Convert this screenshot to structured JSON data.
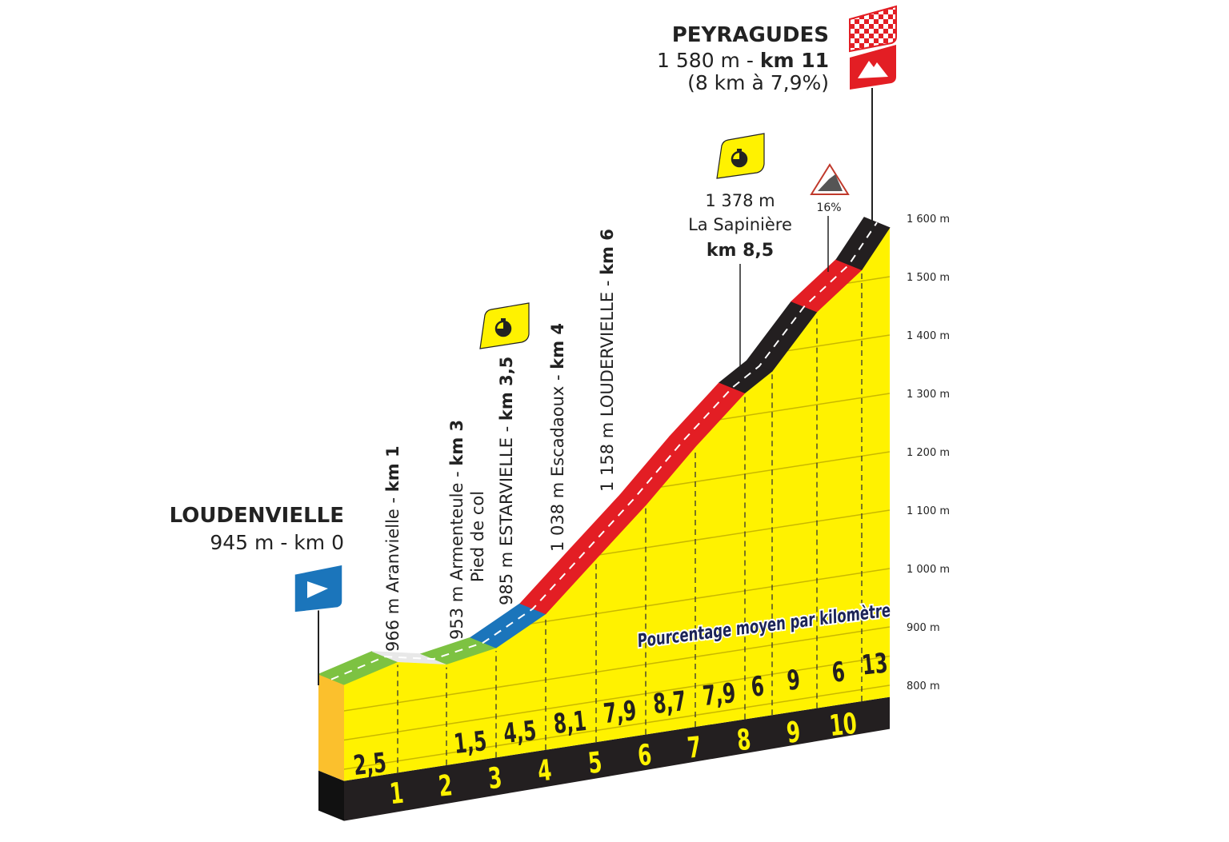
{
  "chart_data": {
    "type": "area",
    "title": "",
    "xlabel": "",
    "ylabel": "",
    "ylim": [
      800,
      1600
    ],
    "grid": true,
    "y_ticks": [
      "800 m",
      "900 m",
      "1 000 m",
      "1 100 m",
      "1 200 m",
      "1 300 m",
      "1 400 m",
      "1 500 m",
      "1 600 m"
    ],
    "y_tick_values": [
      800,
      900,
      1000,
      1100,
      1200,
      1300,
      1400,
      1500,
      1600
    ],
    "x_ticks": [
      "1",
      "2",
      "3",
      "4",
      "5",
      "6",
      "7",
      "8",
      "9",
      "10"
    ],
    "start_elevation_m": 945,
    "segments": [
      {
        "km_from": 0,
        "km_to": 1,
        "gradient": 2.5,
        "label": "2,5",
        "color": "green"
      },
      {
        "km_from": 1,
        "km_to": 2,
        "gradient": -1.7,
        "label": "",
        "color": "white"
      },
      {
        "km_from": 2,
        "km_to": 3,
        "gradient": 1.5,
        "label": "1,5",
        "color": "green"
      },
      {
        "km_from": 3,
        "km_to": 4,
        "gradient": 4.5,
        "label": "4,5",
        "color": "blue"
      },
      {
        "km_from": 4,
        "km_to": 5,
        "gradient": 8.1,
        "label": "8,1",
        "color": "red"
      },
      {
        "km_from": 5,
        "km_to": 6,
        "gradient": 7.9,
        "label": "7,9",
        "color": "red"
      },
      {
        "km_from": 6,
        "km_to": 7,
        "gradient": 8.7,
        "label": "8,7",
        "color": "red"
      },
      {
        "km_from": 7,
        "km_to": 8,
        "gradient": 7.9,
        "label": "7,9",
        "color": "red"
      },
      {
        "km_from": 8,
        "km_to": 8.5,
        "gradient": 6,
        "label": "6",
        "color": "black"
      },
      {
        "km_from": 8.5,
        "km_to": 9.5,
        "gradient": 9,
        "label": "9",
        "color": "black"
      },
      {
        "km_from": 9.5,
        "km_to": 10.5,
        "gradient": 6,
        "label": "6",
        "color": "red"
      },
      {
        "km_from": 10.5,
        "km_to": 11,
        "gradient": 13,
        "label": "13",
        "color": "black"
      }
    ],
    "colors": {
      "green": "#7dc242",
      "white": "#e8e8e8",
      "blue": "#1b75bb",
      "red": "#e31e24",
      "black": "#231f20",
      "face": "#fff200",
      "side": "#fbc02d",
      "base": "#231f20",
      "tick_label": "#fff200"
    },
    "legend_note": "Pourcentage moyen par kilomètre"
  },
  "start": {
    "name": "LOUDENVIELLE",
    "detail": "945 m - km 0",
    "icon": "start-flag-icon",
    "color": "#1b75bb"
  },
  "finish": {
    "name": "PEYRAGUDES",
    "detail_plain": "1 580 m - ",
    "detail_bold": "km 11",
    "climb": "(8 km à 7,9%)",
    "icons": [
      "checkered-flag-icon",
      "mountain-summit-icon"
    ],
    "color": "#e31e24"
  },
  "waypoints": [
    {
      "plain": "966 m Aranvielle - ",
      "bold": "km 1"
    },
    {
      "plain": "953 m Armenteule - ",
      "bold": "km 3",
      "sub": "Pied de col"
    },
    {
      "plain": "985 m ESTARVIELLE - ",
      "bold": "km 3,5",
      "icon": "stopwatch-icon"
    },
    {
      "plain": "1 038 m Escadaoux - ",
      "bold": "km 4"
    },
    {
      "plain": "1 158 m LOUDERVIELLE - ",
      "bold": "km 6"
    }
  ],
  "sapiniere": {
    "elev": "1 378 m",
    "name": "La Sapinière",
    "km": "km 8,5",
    "icon": "stopwatch-icon"
  },
  "steep": {
    "label": "16%",
    "icon": "steep-gradient-icon"
  }
}
